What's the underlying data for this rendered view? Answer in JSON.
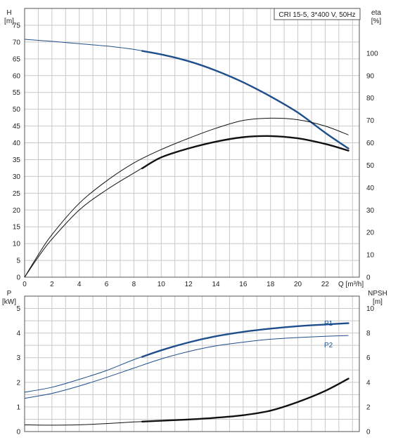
{
  "chart_data": [
    {
      "type": "line",
      "title": "CRI 15-5, 3*400 V, 50Hz",
      "left_axis_label": [
        "H",
        "[m]"
      ],
      "right_axis_label": [
        "eta",
        "[%]"
      ],
      "x_axis_label": "Q [m³/h]",
      "xlim": [
        0,
        24.5
      ],
      "ylim_left": [
        0,
        80
      ],
      "ylim_right": [
        0,
        120
      ],
      "grid": true,
      "x_ticks": [
        0,
        2,
        4,
        6,
        8,
        10,
        12,
        14,
        16,
        18,
        20,
        22
      ],
      "left_ticks": [
        0,
        5,
        10,
        15,
        20,
        25,
        30,
        35,
        40,
        45,
        50,
        55,
        60,
        65,
        70,
        75
      ],
      "right_ticks": [
        0,
        10,
        20,
        30,
        40,
        50,
        60,
        70,
        80,
        90,
        100
      ],
      "series": [
        {
          "id": "H",
          "axis": "left",
          "color": "#1f4e8c",
          "x": [
            0,
            2,
            4,
            6,
            8,
            10,
            12,
            14,
            16,
            18,
            20,
            22,
            23.7
          ],
          "y": [
            70.8,
            70.2,
            69.5,
            68.8,
            67.8,
            66.3,
            64.3,
            61.5,
            58.0,
            53.8,
            49.0,
            43.0,
            38.3
          ],
          "bold_from": 8.6
        },
        {
          "id": "eta-upper",
          "axis": "right",
          "color": "#111111",
          "x": [
            0,
            1,
            2,
            4,
            6,
            8,
            10,
            12,
            14,
            16,
            18,
            20,
            22,
            23.7
          ],
          "y": [
            0,
            10,
            19,
            33,
            43,
            51,
            57,
            62,
            66.5,
            70,
            71,
            70.3,
            67.5,
            63.5
          ],
          "bold_from": 99
        },
        {
          "id": "eta-lower",
          "axis": "right",
          "color": "#111111",
          "x": [
            0,
            1,
            2,
            4,
            6,
            8,
            10,
            12,
            14,
            16,
            18,
            20,
            22,
            23.7
          ],
          "y": [
            0,
            9,
            17,
            30,
            39,
            46.5,
            53.5,
            57.5,
            60.5,
            62.5,
            63,
            62,
            59.5,
            56.5
          ],
          "bold_from": 8.6
        }
      ]
    },
    {
      "type": "line",
      "left_axis_label": [
        "P",
        "[kW]"
      ],
      "right_axis_label": [
        "NPSH",
        "[m]"
      ],
      "xlim": [
        0,
        24.5
      ],
      "ylim_left": [
        0,
        5.5
      ],
      "ylim_right": [
        0,
        11
      ],
      "grid": true,
      "left_ticks": [
        0,
        1,
        2,
        3,
        4,
        5
      ],
      "right_ticks": [
        0,
        2,
        4,
        6,
        8,
        10
      ],
      "series": [
        {
          "id": "P1",
          "name": "P1",
          "axis": "left",
          "color": "#1f4e8c",
          "x": [
            0,
            2,
            4,
            6,
            8,
            10,
            12,
            14,
            16,
            18,
            20,
            22,
            23.7
          ],
          "y": [
            1.6,
            1.8,
            2.12,
            2.48,
            2.92,
            3.3,
            3.62,
            3.87,
            4.05,
            4.18,
            4.28,
            4.35,
            4.4
          ],
          "bold_from": 8.6
        },
        {
          "id": "P2",
          "name": "P2",
          "axis": "left",
          "color": "#1f4e8c",
          "x": [
            0,
            2,
            4,
            6,
            8,
            10,
            12,
            14,
            16,
            18,
            20,
            22,
            23.7
          ],
          "y": [
            1.35,
            1.55,
            1.85,
            2.2,
            2.58,
            2.95,
            3.25,
            3.48,
            3.63,
            3.75,
            3.82,
            3.87,
            3.9
          ],
          "bold_from": 99
        },
        {
          "id": "NPSH",
          "axis": "right",
          "color": "#111111",
          "x": [
            0,
            2,
            4,
            6,
            8,
            10,
            12,
            14,
            16,
            18,
            20,
            22,
            23.7
          ],
          "y": [
            0.55,
            0.52,
            0.55,
            0.65,
            0.78,
            0.88,
            0.98,
            1.12,
            1.33,
            1.7,
            2.4,
            3.3,
            4.3
          ],
          "bold_from": 8.6
        }
      ]
    }
  ]
}
